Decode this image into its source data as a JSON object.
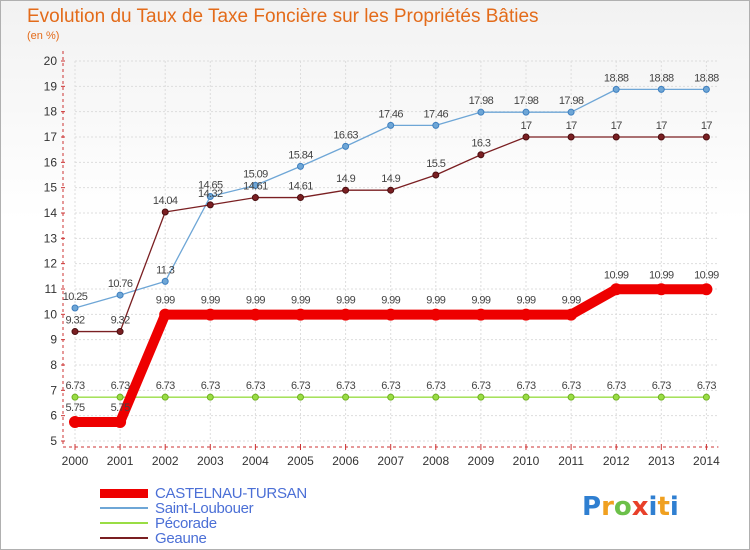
{
  "header": {
    "title": "Evolution du Taux de Taxe Foncière sur les Propriétés Bâties",
    "unit": "(en %)"
  },
  "logo": {
    "text": "Proxiti"
  },
  "chart_data": {
    "type": "line",
    "title": "Evolution du Taux de Taxe Foncière sur les Propriétés Bâties",
    "ylabel": "(en %)",
    "xlabel": "",
    "ylim": [
      5,
      20
    ],
    "yticks": [
      5,
      6,
      7,
      8,
      9,
      10,
      11,
      12,
      13,
      14,
      15,
      16,
      17,
      18,
      19,
      20
    ],
    "categories": [
      "2000",
      "2001",
      "2002",
      "2003",
      "2004",
      "2005",
      "2006",
      "2007",
      "2008",
      "2009",
      "2010",
      "2011",
      "2012",
      "2013",
      "2014"
    ],
    "series": [
      {
        "name": "CASTELNAU-TURSAN",
        "color": "#ee0000",
        "values": [
          5.75,
          5.75,
          9.99,
          9.99,
          9.99,
          9.99,
          9.99,
          9.99,
          9.99,
          9.99,
          9.99,
          9.99,
          10.99,
          10.99,
          10.99
        ],
        "labels": [
          "5.75",
          "5.75",
          "9.99",
          "9.99",
          "9.99",
          "9.99",
          "9.99",
          "9.99",
          "9.99",
          "9.99",
          "9.99",
          "9.99",
          "10.99",
          "10.99",
          "10.99"
        ]
      },
      {
        "name": "Saint-Loubouer",
        "color": "#6ea6d6",
        "values": [
          10.25,
          10.76,
          11.3,
          14.65,
          15.09,
          15.84,
          16.63,
          17.46,
          17.46,
          17.98,
          17.98,
          17.98,
          18.88,
          18.88,
          18.88
        ],
        "labels": [
          "10.25",
          "10.76",
          "11.3",
          "14.65",
          "15.09",
          "15.84",
          "16.63",
          "17.46",
          "17.46",
          "17.98",
          "17.98",
          "17.98",
          "18.88",
          "18.88",
          "18.88"
        ]
      },
      {
        "name": "Pécorade",
        "color": "#99dd44",
        "values": [
          6.73,
          6.73,
          6.73,
          6.73,
          6.73,
          6.73,
          6.73,
          6.73,
          6.73,
          6.73,
          6.73,
          6.73,
          6.73,
          6.73,
          6.73
        ],
        "labels": [
          "6.73",
          "6.73",
          "6.73",
          "6.73",
          "6.73",
          "6.73",
          "6.73",
          "6.73",
          "6.73",
          "6.73",
          "6.73",
          "6.73",
          "6.73",
          "6.73",
          "6.73"
        ]
      },
      {
        "name": "Geaune",
        "color": "#7a1f22",
        "values": [
          9.32,
          9.32,
          14.04,
          14.32,
          14.61,
          14.61,
          14.9,
          14.9,
          15.5,
          16.3,
          17,
          17,
          17,
          17,
          17
        ],
        "labels": [
          "9.32",
          "9.32",
          "14.04",
          "14.32",
          "14.61",
          "14.61",
          "14.9",
          "14.9",
          "15.5",
          "16.3",
          "17",
          "17",
          "17",
          "17",
          "17"
        ]
      }
    ],
    "grid": true,
    "legend": "bottom-left"
  }
}
